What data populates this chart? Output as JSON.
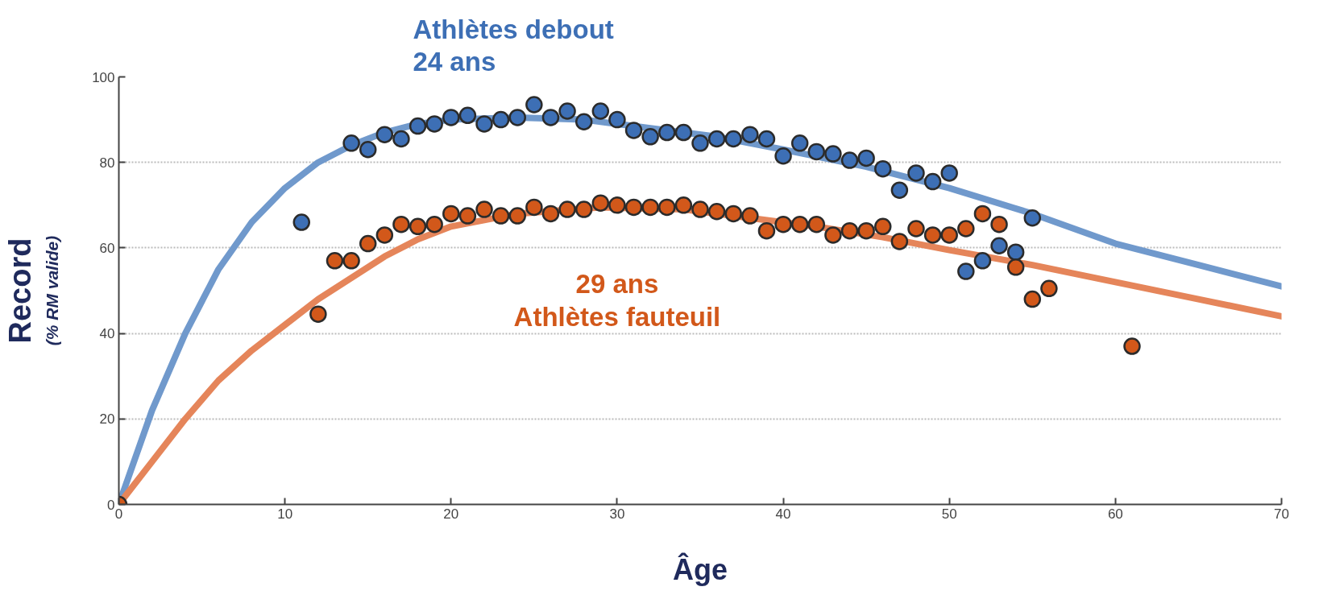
{
  "chart_data": {
    "type": "scatter",
    "xlabel": "Âge",
    "ylabel": "Record",
    "annotations": [
      "(% RM valide)",
      "Athlètes debout\n24 ans",
      "29 ans\nAthlètes fauteuil"
    ],
    "xlim": [
      0,
      70
    ],
    "ylim": [
      0,
      100
    ],
    "xticks": [
      0,
      10,
      20,
      30,
      40,
      50,
      60,
      70
    ],
    "yticks": [
      0,
      20,
      40,
      60,
      80,
      100
    ],
    "grid": "y",
    "marker": "circle",
    "series": [
      {
        "type": "line",
        "marker": "none",
        "color": "#7099cc",
        "x": [
          0,
          2,
          4,
          6,
          8,
          10,
          12,
          14,
          16,
          18,
          20,
          24,
          28,
          32,
          36,
          40,
          45,
          50,
          55,
          60,
          65,
          70
        ],
        "values": [
          0,
          22,
          40,
          55,
          66,
          74,
          80,
          84,
          87,
          89,
          90,
          90.5,
          90,
          88,
          86,
          83,
          79,
          74,
          68,
          61,
          56,
          51
        ]
      },
      {
        "type": "line",
        "marker": "none",
        "color": "#e5855a",
        "x": [
          0,
          2,
          4,
          6,
          8,
          10,
          12,
          14,
          16,
          18,
          20,
          24,
          29,
          34,
          38,
          42,
          46,
          50,
          55,
          60,
          65,
          70
        ],
        "values": [
          0,
          10,
          20,
          29,
          36,
          42,
          48,
          53,
          58,
          62,
          65,
          68,
          69.5,
          69,
          67,
          65,
          62.5,
          59.5,
          56,
          52,
          48,
          44
        ]
      },
      {
        "color": "#3d6fb5",
        "x": [
          11,
          14,
          15,
          16,
          17,
          18,
          19,
          20,
          21,
          22,
          23,
          24,
          25,
          26,
          27,
          28,
          29,
          30,
          31,
          32,
          33,
          34,
          35,
          36,
          37,
          38,
          39,
          40,
          41,
          42,
          43,
          44,
          45,
          46,
          47,
          48,
          49,
          50,
          51,
          52,
          53,
          54,
          55
        ],
        "values": [
          66,
          84.5,
          83,
          86.5,
          85.5,
          88.5,
          89,
          90.5,
          91,
          89,
          90,
          90.5,
          93.5,
          90.5,
          92,
          89.5,
          92,
          90,
          87.5,
          86,
          87,
          87,
          84.5,
          85.5,
          85.5,
          86.5,
          85.5,
          81.5,
          84.5,
          82.5,
          82,
          80.5,
          81,
          78.5,
          73.5,
          77.5,
          75.5,
          77.5,
          54.5,
          57,
          60.5,
          59,
          67
        ]
      },
      {
        "color": "#d2581a",
        "x": [
          0,
          12,
          13,
          14,
          15,
          16,
          17,
          18,
          19,
          20,
          21,
          22,
          23,
          24,
          25,
          26,
          27,
          28,
          29,
          30,
          31,
          32,
          33,
          34,
          35,
          36,
          37,
          38,
          39,
          40,
          41,
          42,
          43,
          44,
          45,
          46,
          47,
          48,
          49,
          50,
          51,
          52,
          53,
          54,
          55,
          56,
          61
        ],
        "values": [
          0,
          44.5,
          57,
          57,
          61,
          63,
          65.5,
          65,
          65.5,
          68,
          67.5,
          69,
          67.5,
          67.5,
          69.5,
          68,
          69,
          69,
          70.5,
          70,
          69.5,
          69.5,
          69.5,
          70,
          69,
          68.5,
          68,
          67.5,
          64,
          65.5,
          65.5,
          65.5,
          63,
          64,
          64,
          65,
          61.5,
          64.5,
          63,
          63,
          64.5,
          68,
          65.5,
          55.5,
          48,
          50.5,
          37
        ]
      }
    ]
  }
}
